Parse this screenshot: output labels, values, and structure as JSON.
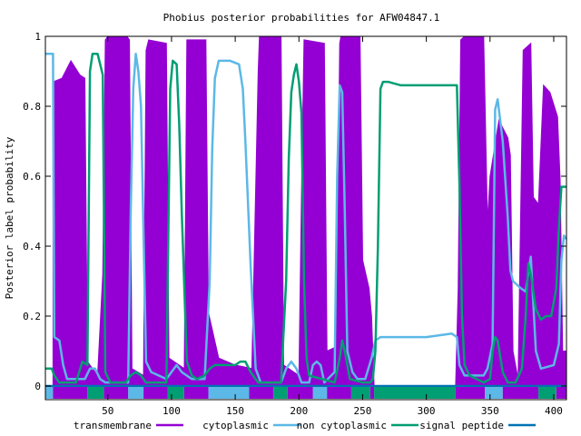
{
  "chart_data": {
    "type": "area",
    "title": "Phobius posterior probabilities for AFW04847.1",
    "xlabel": "",
    "ylabel": "Posterior label probability",
    "xlim": [
      1,
      410
    ],
    "ylim": [
      0,
      1
    ],
    "xticks": [
      50,
      100,
      150,
      200,
      250,
      300,
      350,
      400
    ],
    "yticks": [
      0,
      0.2,
      0.4,
      0.6,
      0.8,
      1
    ],
    "ytick_labels": [
      "0",
      "0.2",
      "0.4",
      "0.6",
      "0.8",
      "1"
    ],
    "grid": false,
    "legend_position": "bottom",
    "colors": {
      "transmembrane": "#9400d3",
      "cytoplasmic": "#5cb8e6",
      "non_cytoplasmic": "#009e73",
      "signal_peptide": "#0072b2"
    },
    "series": [
      {
        "name": "transmembrane",
        "color": "#9400d3",
        "kind": "area",
        "points": [
          [
            1,
            0
          ],
          [
            7,
            0
          ],
          [
            7,
            0.87
          ],
          [
            14,
            0.88
          ],
          [
            21,
            0.93
          ],
          [
            28,
            0.89
          ],
          [
            32,
            0.88
          ],
          [
            34,
            0.07
          ],
          [
            42,
            0.03
          ],
          [
            46,
            0.32
          ],
          [
            48,
            0.99
          ],
          [
            50,
            1
          ],
          [
            65,
            1
          ],
          [
            67,
            0.99
          ],
          [
            69,
            0.05
          ],
          [
            78,
            0.03
          ],
          [
            80,
            0.96
          ],
          [
            82,
            0.99
          ],
          [
            96,
            0.98
          ],
          [
            98,
            0.08
          ],
          [
            110,
            0.05
          ],
          [
            112,
            0.99
          ],
          [
            127,
            0.99
          ],
          [
            129,
            0.21
          ],
          [
            137,
            0.08
          ],
          [
            150,
            0.06
          ],
          [
            163,
            0.05
          ],
          [
            168,
            0.9
          ],
          [
            169,
            1
          ],
          [
            186,
            1
          ],
          [
            188,
            0.06
          ],
          [
            200,
            0.03
          ],
          [
            202,
            0.55
          ],
          [
            204,
            0.99
          ],
          [
            220,
            0.98
          ],
          [
            222,
            0.1
          ],
          [
            228,
            0.11
          ],
          [
            230,
            0.35
          ],
          [
            232,
            0.98
          ],
          [
            233,
            1
          ],
          [
            248,
            1
          ],
          [
            250,
            0.36
          ],
          [
            255,
            0.28
          ],
          [
            257,
            0.2
          ],
          [
            259,
            0
          ],
          [
            323,
            0
          ],
          [
            325,
            0.28
          ],
          [
            327,
            0.99
          ],
          [
            330,
            1
          ],
          [
            345,
            1
          ],
          [
            348,
            0.47
          ],
          [
            350,
            0.6
          ],
          [
            357,
            0.76
          ],
          [
            364,
            0.71
          ],
          [
            366,
            0.66
          ],
          [
            368,
            0.1
          ],
          [
            372,
            0.02
          ],
          [
            376,
            0.96
          ],
          [
            382,
            0.98
          ],
          [
            384,
            0.54
          ],
          [
            388,
            0.52
          ],
          [
            392,
            0.86
          ],
          [
            397,
            0.84
          ],
          [
            403,
            0.77
          ],
          [
            405,
            0.59
          ],
          [
            407,
            0.1
          ],
          [
            410,
            0.1
          ],
          [
            410,
            0
          ]
        ]
      },
      {
        "name": "cytoplasmic",
        "color": "#5cb8e6",
        "kind": "line",
        "points": [
          [
            1,
            0.95
          ],
          [
            7,
            0.95
          ],
          [
            8,
            0.14
          ],
          [
            12,
            0.13
          ],
          [
            15,
            0.06
          ],
          [
            18,
            0.02
          ],
          [
            32,
            0.02
          ],
          [
            36,
            0.05
          ],
          [
            40,
            0.05
          ],
          [
            44,
            0.02
          ],
          [
            48,
            0.01
          ],
          [
            66,
            0.01
          ],
          [
            68,
            0.5
          ],
          [
            70,
            0.85
          ],
          [
            72,
            0.95
          ],
          [
            74,
            0.9
          ],
          [
            76,
            0.8
          ],
          [
            80,
            0.07
          ],
          [
            84,
            0.04
          ],
          [
            96,
            0.02
          ],
          [
            100,
            0.04
          ],
          [
            104,
            0.06
          ],
          [
            108,
            0.04
          ],
          [
            116,
            0.02
          ],
          [
            126,
            0.02
          ],
          [
            130,
            0.3
          ],
          [
            132,
            0.68
          ],
          [
            134,
            0.88
          ],
          [
            137,
            0.93
          ],
          [
            146,
            0.93
          ],
          [
            153,
            0.92
          ],
          [
            156,
            0.85
          ],
          [
            158,
            0.7
          ],
          [
            162,
            0.35
          ],
          [
            166,
            0.05
          ],
          [
            170,
            0.01
          ],
          [
            186,
            0.01
          ],
          [
            190,
            0.05
          ],
          [
            194,
            0.07
          ],
          [
            198,
            0.05
          ],
          [
            202,
            0.01
          ],
          [
            208,
            0.01
          ],
          [
            211,
            0.06
          ],
          [
            214,
            0.07
          ],
          [
            217,
            0.06
          ],
          [
            220,
            0.01
          ],
          [
            228,
            0.04
          ],
          [
            230,
            0.6
          ],
          [
            232,
            0.86
          ],
          [
            234,
            0.84
          ],
          [
            236,
            0.5
          ],
          [
            238,
            0.1
          ],
          [
            242,
            0.04
          ],
          [
            246,
            0.02
          ],
          [
            252,
            0.02
          ],
          [
            257,
            0.08
          ],
          [
            260,
            0.13
          ],
          [
            264,
            0.14
          ],
          [
            290,
            0.14
          ],
          [
            300,
            0.14
          ],
          [
            320,
            0.15
          ],
          [
            324,
            0.14
          ],
          [
            326,
            0.06
          ],
          [
            330,
            0.03
          ],
          [
            345,
            0.03
          ],
          [
            348,
            0.05
          ],
          [
            352,
            0.12
          ],
          [
            354,
            0.79
          ],
          [
            356,
            0.82
          ],
          [
            360,
            0.7
          ],
          [
            364,
            0.48
          ],
          [
            366,
            0.33
          ],
          [
            368,
            0.3
          ],
          [
            374,
            0.28
          ],
          [
            378,
            0.27
          ],
          [
            380,
            0.32
          ],
          [
            382,
            0.37
          ],
          [
            386,
            0.1
          ],
          [
            390,
            0.05
          ],
          [
            400,
            0.06
          ],
          [
            404,
            0.12
          ],
          [
            406,
            0.36
          ],
          [
            408,
            0.43
          ],
          [
            410,
            0.42
          ]
        ]
      },
      {
        "name": "non cytoplasmic",
        "color": "#009e73",
        "kind": "line",
        "points": [
          [
            1,
            0.05
          ],
          [
            6,
            0.05
          ],
          [
            8,
            0.03
          ],
          [
            12,
            0.01
          ],
          [
            25,
            0.01
          ],
          [
            30,
            0.07
          ],
          [
            34,
            0.06
          ],
          [
            36,
            0.9
          ],
          [
            38,
            0.95
          ],
          [
            42,
            0.95
          ],
          [
            46,
            0.89
          ],
          [
            48,
            0.04
          ],
          [
            52,
            0.01
          ],
          [
            64,
            0.01
          ],
          [
            68,
            0.03
          ],
          [
            72,
            0.04
          ],
          [
            76,
            0.03
          ],
          [
            80,
            0.01
          ],
          [
            96,
            0.01
          ],
          [
            99,
            0.85
          ],
          [
            101,
            0.93
          ],
          [
            104,
            0.92
          ],
          [
            106,
            0.75
          ],
          [
            108,
            0.5
          ],
          [
            112,
            0.07
          ],
          [
            116,
            0.03
          ],
          [
            120,
            0.02
          ],
          [
            126,
            0.03
          ],
          [
            130,
            0.05
          ],
          [
            134,
            0.06
          ],
          [
            140,
            0.06
          ],
          [
            150,
            0.06
          ],
          [
            154,
            0.07
          ],
          [
            158,
            0.07
          ],
          [
            162,
            0.04
          ],
          [
            168,
            0.01
          ],
          [
            186,
            0.01
          ],
          [
            190,
            0.3
          ],
          [
            192,
            0.65
          ],
          [
            194,
            0.84
          ],
          [
            196,
            0.89
          ],
          [
            198,
            0.92
          ],
          [
            200,
            0.87
          ],
          [
            202,
            0.78
          ],
          [
            204,
            0.3
          ],
          [
            206,
            0.08
          ],
          [
            208,
            0.03
          ],
          [
            228,
            0.01
          ],
          [
            232,
            0.08
          ],
          [
            234,
            0.13
          ],
          [
            236,
            0.1
          ],
          [
            240,
            0.02
          ],
          [
            250,
            0.01
          ],
          [
            256,
            0.01
          ],
          [
            258,
            0.02
          ],
          [
            260,
            0.1
          ],
          [
            262,
            0.4
          ],
          [
            264,
            0.85
          ],
          [
            266,
            0.87
          ],
          [
            270,
            0.87
          ],
          [
            280,
            0.86
          ],
          [
            290,
            0.86
          ],
          [
            300,
            0.86
          ],
          [
            310,
            0.86
          ],
          [
            322,
            0.86
          ],
          [
            324,
            0.86
          ],
          [
            326,
            0.58
          ],
          [
            328,
            0.2
          ],
          [
            330,
            0.06
          ],
          [
            334,
            0.03
          ],
          [
            345,
            0.01
          ],
          [
            350,
            0.02
          ],
          [
            352,
            0.1
          ],
          [
            354,
            0.14
          ],
          [
            356,
            0.13
          ],
          [
            360,
            0.04
          ],
          [
            364,
            0.01
          ],
          [
            370,
            0.01
          ],
          [
            375,
            0.05
          ],
          [
            378,
            0.2
          ],
          [
            380,
            0.35
          ],
          [
            382,
            0.32
          ],
          [
            386,
            0.22
          ],
          [
            390,
            0.19
          ],
          [
            394,
            0.2
          ],
          [
            398,
            0.2
          ],
          [
            402,
            0.28
          ],
          [
            404,
            0.45
          ],
          [
            406,
            0.57
          ],
          [
            410,
            0.57
          ]
        ]
      },
      {
        "name": "signal peptide",
        "color": "#0072b2",
        "kind": "line",
        "points": [
          [
            1,
            0
          ],
          [
            410,
            0
          ]
        ]
      }
    ],
    "label_track": [
      {
        "label": "cytoplasmic",
        "start": 1,
        "end": 7
      },
      {
        "label": "transmembrane",
        "start": 7,
        "end": 34
      },
      {
        "label": "non cytoplasmic",
        "start": 34,
        "end": 47
      },
      {
        "label": "transmembrane",
        "start": 47,
        "end": 66
      },
      {
        "label": "cytoplasmic",
        "start": 66,
        "end": 78
      },
      {
        "label": "transmembrane",
        "start": 78,
        "end": 97
      },
      {
        "label": "non cytoplasmic",
        "start": 97,
        "end": 110
      },
      {
        "label": "transmembrane",
        "start": 110,
        "end": 129
      },
      {
        "label": "cytoplasmic",
        "start": 129,
        "end": 161
      },
      {
        "label": "transmembrane",
        "start": 161,
        "end": 180
      },
      {
        "label": "non cytoplasmic",
        "start": 180,
        "end": 191
      },
      {
        "label": "transmembrane",
        "start": 191,
        "end": 211
      },
      {
        "label": "cytoplasmic",
        "start": 211,
        "end": 222
      },
      {
        "label": "transmembrane",
        "start": 222,
        "end": 241
      },
      {
        "label": "non cytoplasmic",
        "start": 241,
        "end": 256
      },
      {
        "label": "transmembrane",
        "start": 256,
        "end": 259
      },
      {
        "label": "non cytoplasmic",
        "start": 259,
        "end": 323
      },
      {
        "label": "transmembrane",
        "start": 323,
        "end": 346
      },
      {
        "label": "cytoplasmic",
        "start": 346,
        "end": 360
      },
      {
        "label": "transmembrane",
        "start": 360,
        "end": 388
      },
      {
        "label": "non cytoplasmic",
        "start": 388,
        "end": 402
      },
      {
        "label": "transmembrane",
        "start": 402,
        "end": 410
      }
    ]
  }
}
